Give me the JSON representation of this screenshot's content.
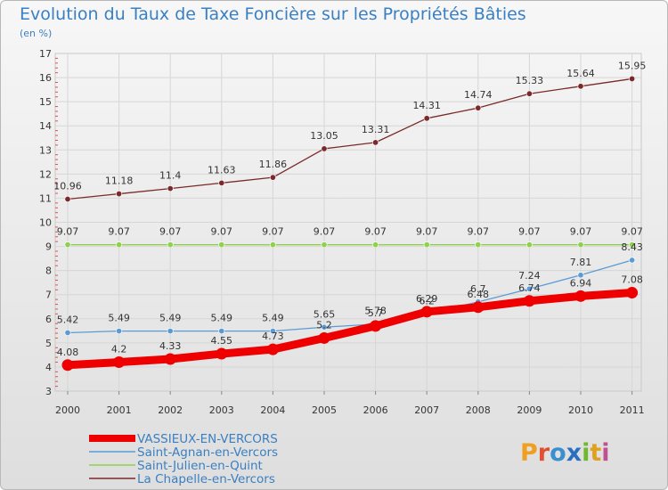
{
  "chart_data": {
    "type": "line",
    "title": "Evolution du Taux de Taxe Foncière sur les Propriétés Bâties",
    "subtitle": "(en %)",
    "xlabel": "",
    "ylabel": "",
    "ylim": [
      3,
      17
    ],
    "yticks": [
      "3",
      "4",
      "5",
      "6",
      "7",
      "8",
      "9",
      "10",
      "11",
      "12",
      "13",
      "14",
      "15",
      "16",
      "17"
    ],
    "categories": [
      "2000",
      "2001",
      "2002",
      "2003",
      "2004",
      "2005",
      "2006",
      "2007",
      "2008",
      "2009",
      "2010",
      "2011"
    ],
    "legend_position": "bottom-left",
    "series": [
      {
        "name": "VASSIEUX-EN-VERCORS",
        "color": "#ee0000",
        "values": [
          4.08,
          4.2,
          4.33,
          4.55,
          4.73,
          5.2,
          5.7,
          6.29,
          6.48,
          6.74,
          6.94,
          7.08
        ],
        "labels": [
          "4.08",
          "4.2",
          "4.33",
          "4.55",
          "4.73",
          "5.2",
          "5.7",
          "6.29",
          "6.48",
          "6.74",
          "6.94",
          "7.08"
        ]
      },
      {
        "name": "Saint-Agnan-en-Vercors",
        "color": "#5b9bd5",
        "values": [
          5.42,
          5.49,
          5.49,
          5.49,
          5.49,
          5.65,
          5.78,
          6.2,
          6.7,
          7.24,
          7.81,
          8.43
        ],
        "labels": [
          "5.42",
          "5.49",
          "5.49",
          "5.49",
          "5.49",
          "5.65",
          "5.78",
          "6.2",
          "6.7",
          "7.24",
          "7.81",
          "8.43"
        ]
      },
      {
        "name": "Saint-Julien-en-Quint",
        "color": "#8fd14f",
        "values": [
          9.07,
          9.07,
          9.07,
          9.07,
          9.07,
          9.07,
          9.07,
          9.07,
          9.07,
          9.07,
          9.07,
          9.07
        ],
        "labels": [
          "9.07",
          "9.07",
          "9.07",
          "9.07",
          "9.07",
          "9.07",
          "9.07",
          "9.07",
          "9.07",
          "9.07",
          "9.07",
          "9.07"
        ]
      },
      {
        "name": "La Chapelle-en-Vercors",
        "color": "#7a2a2a",
        "values": [
          10.96,
          11.18,
          11.4,
          11.63,
          11.86,
          13.05,
          13.31,
          14.31,
          14.74,
          15.33,
          15.64,
          15.95
        ],
        "labels": [
          "10.96",
          "11.18",
          "11.4",
          "11.63",
          "11.86",
          "13.05",
          "13.31",
          "14.31",
          "14.74",
          "15.33",
          "15.64",
          "15.95"
        ]
      }
    ]
  },
  "brand": {
    "text": "Proxiti"
  }
}
